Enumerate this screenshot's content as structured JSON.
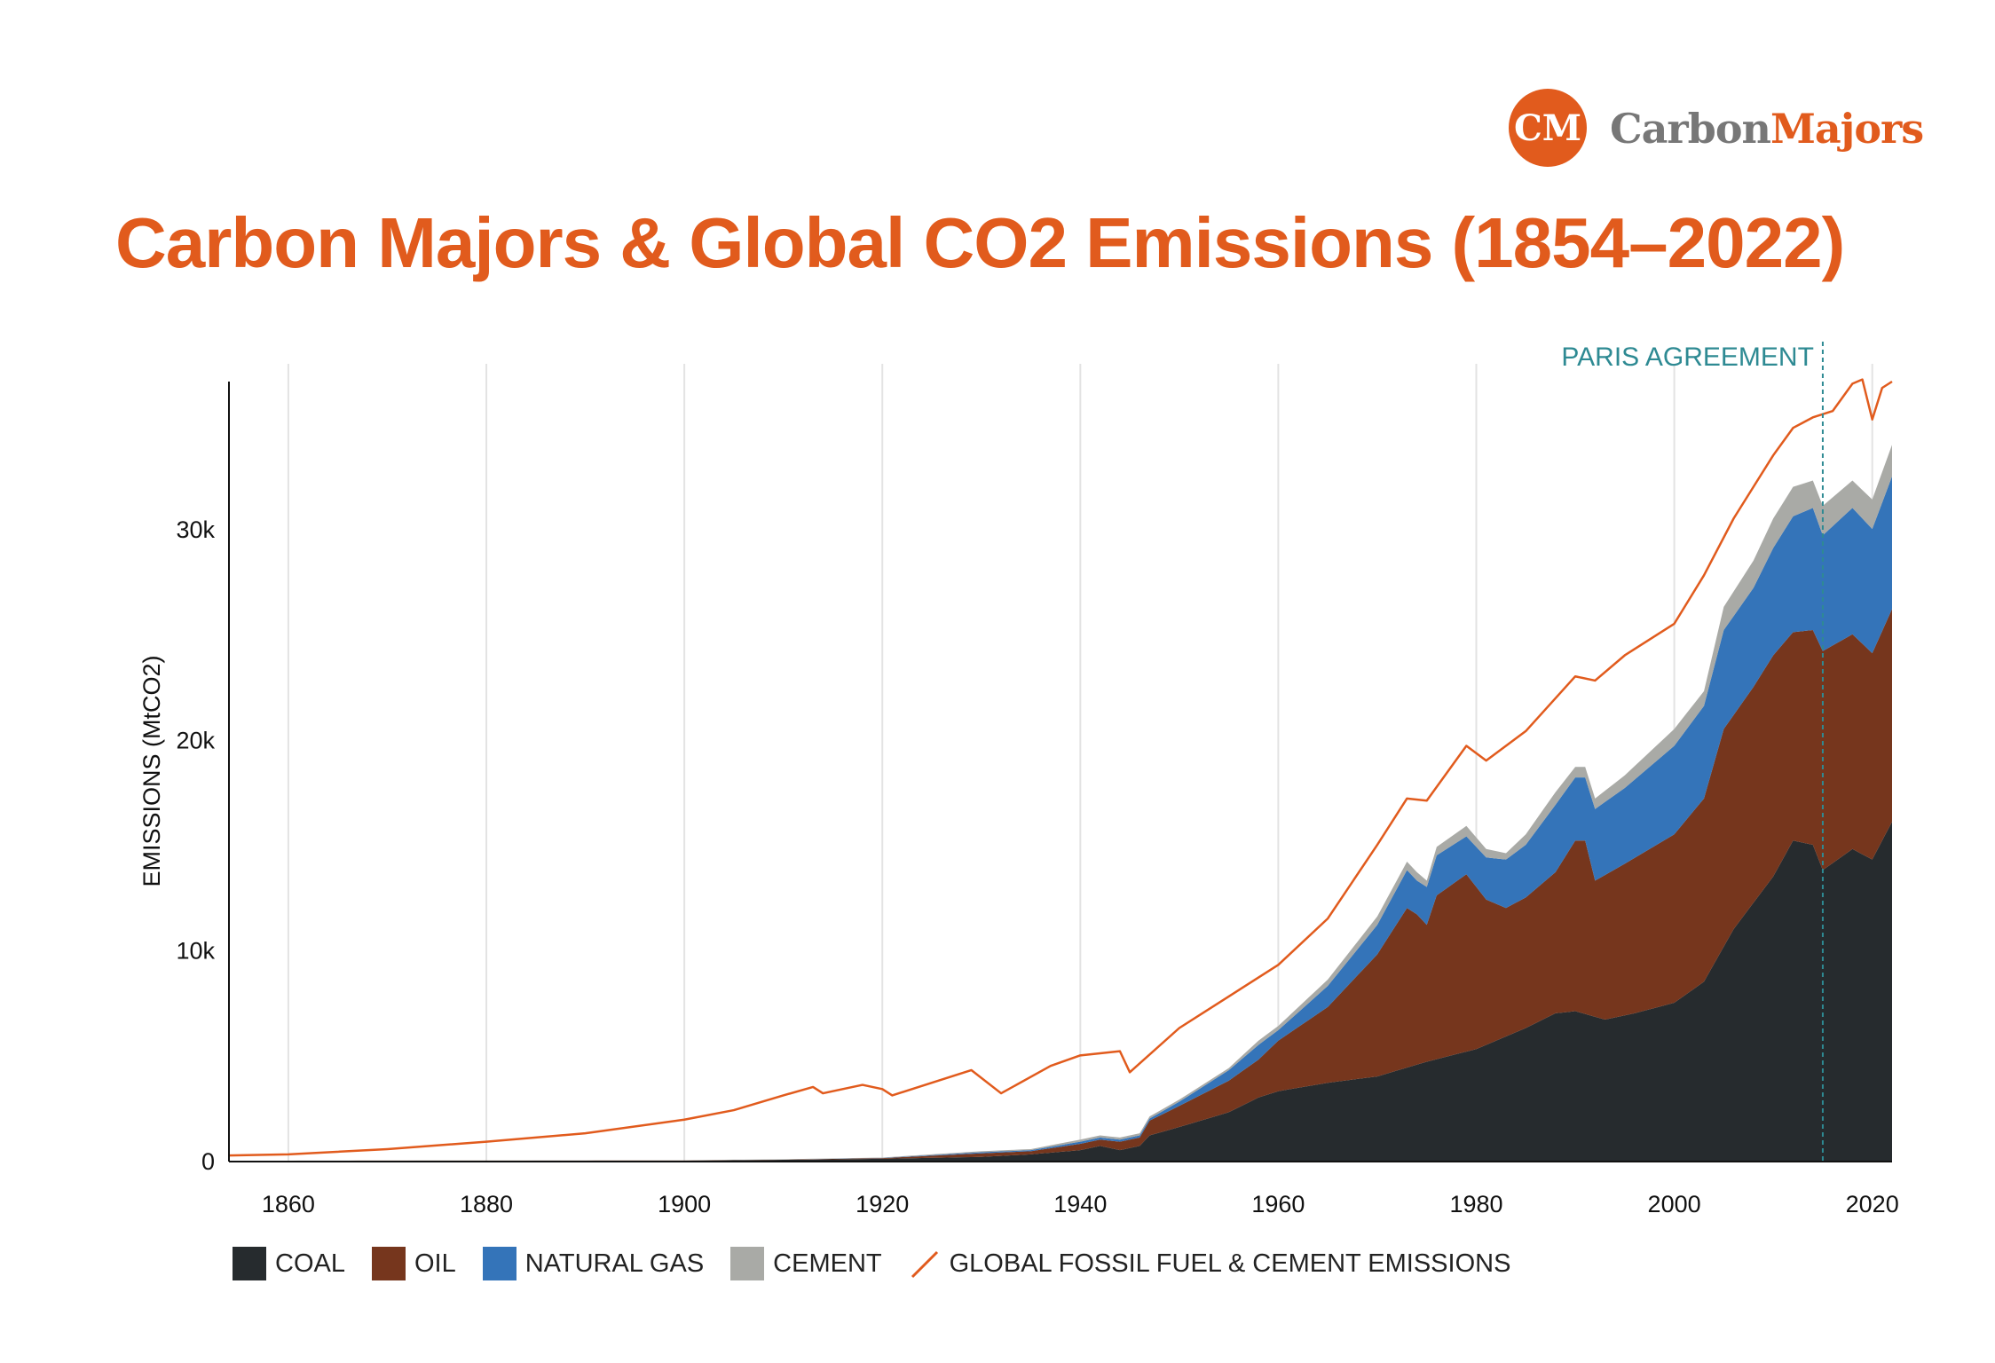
{
  "logo": {
    "initials": "CM",
    "text_a": "Carbon",
    "text_b": "Majors"
  },
  "title": "Carbon Majors & Global CO2 Emissions (1854–2022)",
  "colors": {
    "accent": "#e15b1d",
    "coal": "#262b2e",
    "oil": "#76361d",
    "natural_gas": "#3474b9",
    "cement": "#a9aaa6",
    "global_line": "#e15b1d",
    "paris": "#2e8a93",
    "grid": "#e3e3e3"
  },
  "legend": [
    {
      "key": "coal",
      "label": "COAL"
    },
    {
      "key": "oil",
      "label": "OIL"
    },
    {
      "key": "natural_gas",
      "label": "NATURAL GAS"
    },
    {
      "key": "cement",
      "label": "CEMENT"
    },
    {
      "key": "global",
      "label": "GLOBAL FOSSIL FUEL & CEMENT EMISSIONS"
    }
  ],
  "chart_data": {
    "type": "area",
    "title": "Carbon Majors & Global CO2 Emissions (1854–2022)",
    "xlabel": "",
    "ylabel": "EMISSIONS (MtCO2)",
    "xlim": [
      1854,
      2022
    ],
    "ylim": [
      0,
      37000
    ],
    "x_ticks": [
      1860,
      1880,
      1900,
      1920,
      1940,
      1960,
      1980,
      2000,
      2020
    ],
    "y_ticks": [
      0,
      10000,
      20000,
      30000
    ],
    "y_tick_labels": [
      "0",
      "10k",
      "20k",
      "30k"
    ],
    "grid": "vertical",
    "legend_position": "bottom",
    "stack_order": [
      "coal",
      "oil",
      "natural_gas",
      "cement"
    ],
    "series": [
      {
        "key": "coal",
        "name": "COAL",
        "points": [
          [
            1854,
            0
          ],
          [
            1900,
            0
          ],
          [
            1910,
            40
          ],
          [
            1920,
            90
          ],
          [
            1930,
            180
          ],
          [
            1935,
            300
          ],
          [
            1940,
            500
          ],
          [
            1942,
            700
          ],
          [
            1944,
            500
          ],
          [
            1946,
            700
          ],
          [
            1947,
            1200
          ],
          [
            1950,
            1600
          ],
          [
            1955,
            2300
          ],
          [
            1958,
            3000
          ],
          [
            1960,
            3300
          ],
          [
            1965,
            3700
          ],
          [
            1970,
            4000
          ],
          [
            1975,
            4700
          ],
          [
            1980,
            5300
          ],
          [
            1985,
            6300
          ],
          [
            1988,
            7000
          ],
          [
            1990,
            7100
          ],
          [
            1993,
            6700
          ],
          [
            1996,
            7000
          ],
          [
            2000,
            7500
          ],
          [
            2003,
            8500
          ],
          [
            2006,
            11000
          ],
          [
            2010,
            13500
          ],
          [
            2012,
            15200
          ],
          [
            2014,
            15000
          ],
          [
            2015,
            13800
          ],
          [
            2018,
            14800
          ],
          [
            2020,
            14300
          ],
          [
            2022,
            16100
          ]
        ]
      },
      {
        "key": "oil",
        "name": "OIL",
        "points": [
          [
            1854,
            0
          ],
          [
            1900,
            10
          ],
          [
            1910,
            50
          ],
          [
            1920,
            120
          ],
          [
            1930,
            350
          ],
          [
            1935,
            450
          ],
          [
            1940,
            800
          ],
          [
            1942,
            1000
          ],
          [
            1944,
            900
          ],
          [
            1946,
            1100
          ],
          [
            1947,
            1900
          ],
          [
            1950,
            2600
          ],
          [
            1955,
            3800
          ],
          [
            1958,
            4800
          ],
          [
            1960,
            5700
          ],
          [
            1965,
            7300
          ],
          [
            1970,
            9800
          ],
          [
            1973,
            12000
          ],
          [
            1974,
            11700
          ],
          [
            1975,
            11200
          ],
          [
            1976,
            12600
          ],
          [
            1979,
            13600
          ],
          [
            1981,
            12400
          ],
          [
            1983,
            12000
          ],
          [
            1985,
            12500
          ],
          [
            1988,
            13700
          ],
          [
            1990,
            15200
          ],
          [
            1991,
            15200
          ],
          [
            1992,
            13300
          ],
          [
            1995,
            14100
          ],
          [
            2000,
            15500
          ],
          [
            2003,
            17200
          ],
          [
            2005,
            20500
          ],
          [
            2008,
            22500
          ],
          [
            2010,
            24000
          ],
          [
            2012,
            25100
          ],
          [
            2014,
            25200
          ],
          [
            2015,
            24200
          ],
          [
            2018,
            25000
          ],
          [
            2020,
            24100
          ],
          [
            2022,
            26200
          ]
        ]
      },
      {
        "key": "natural_gas",
        "name": "NATURAL GAS",
        "points": [
          [
            1854,
            0
          ],
          [
            1900,
            10
          ],
          [
            1910,
            50
          ],
          [
            1920,
            130
          ],
          [
            1930,
            400
          ],
          [
            1935,
            500
          ],
          [
            1940,
            900
          ],
          [
            1942,
            1100
          ],
          [
            1944,
            1000
          ],
          [
            1946,
            1200
          ],
          [
            1947,
            2000
          ],
          [
            1950,
            2800
          ],
          [
            1955,
            4300
          ],
          [
            1958,
            5500
          ],
          [
            1960,
            6200
          ],
          [
            1965,
            8300
          ],
          [
            1970,
            11200
          ],
          [
            1973,
            13800
          ],
          [
            1974,
            13300
          ],
          [
            1975,
            13000
          ],
          [
            1976,
            14500
          ],
          [
            1979,
            15400
          ],
          [
            1981,
            14400
          ],
          [
            1983,
            14300
          ],
          [
            1985,
            15000
          ],
          [
            1988,
            16900
          ],
          [
            1990,
            18200
          ],
          [
            1991,
            18200
          ],
          [
            1992,
            16700
          ],
          [
            1995,
            17700
          ],
          [
            2000,
            19700
          ],
          [
            2003,
            21600
          ],
          [
            2005,
            25200
          ],
          [
            2008,
            27200
          ],
          [
            2010,
            29100
          ],
          [
            2012,
            30600
          ],
          [
            2014,
            31000
          ],
          [
            2015,
            29700
          ],
          [
            2018,
            31000
          ],
          [
            2020,
            30000
          ],
          [
            2022,
            32500
          ]
        ]
      },
      {
        "key": "cement",
        "name": "CEMENT",
        "points": [
          [
            1854,
            0
          ],
          [
            1900,
            20
          ],
          [
            1910,
            70
          ],
          [
            1920,
            150
          ],
          [
            1930,
            450
          ],
          [
            1935,
            550
          ],
          [
            1940,
            1000
          ],
          [
            1942,
            1200
          ],
          [
            1944,
            1100
          ],
          [
            1946,
            1300
          ],
          [
            1947,
            2100
          ],
          [
            1950,
            2900
          ],
          [
            1955,
            4400
          ],
          [
            1958,
            5700
          ],
          [
            1960,
            6400
          ],
          [
            1965,
            8600
          ],
          [
            1970,
            11600
          ],
          [
            1973,
            14200
          ],
          [
            1974,
            13700
          ],
          [
            1975,
            13300
          ],
          [
            1976,
            14900
          ],
          [
            1979,
            15900
          ],
          [
            1981,
            14800
          ],
          [
            1983,
            14600
          ],
          [
            1985,
            15500
          ],
          [
            1988,
            17500
          ],
          [
            1990,
            18700
          ],
          [
            1991,
            18700
          ],
          [
            1992,
            17200
          ],
          [
            1995,
            18300
          ],
          [
            2000,
            20500
          ],
          [
            2003,
            22300
          ],
          [
            2005,
            26300
          ],
          [
            2008,
            28500
          ],
          [
            2010,
            30500
          ],
          [
            2012,
            32000
          ],
          [
            2014,
            32300
          ],
          [
            2015,
            31100
          ],
          [
            2018,
            32300
          ],
          [
            2020,
            31400
          ],
          [
            2022,
            34000
          ]
        ]
      },
      {
        "key": "global",
        "name": "GLOBAL FOSSIL FUEL & CEMENT EMISSIONS",
        "points": [
          [
            1854,
            250
          ],
          [
            1860,
            300
          ],
          [
            1870,
            550
          ],
          [
            1880,
            900
          ],
          [
            1890,
            1300
          ],
          [
            1900,
            1950
          ],
          [
            1905,
            2400
          ],
          [
            1910,
            3100
          ],
          [
            1913,
            3500
          ],
          [
            1914,
            3200
          ],
          [
            1918,
            3600
          ],
          [
            1920,
            3400
          ],
          [
            1921,
            3100
          ],
          [
            1925,
            3700
          ],
          [
            1929,
            4300
          ],
          [
            1932,
            3200
          ],
          [
            1937,
            4500
          ],
          [
            1940,
            5000
          ],
          [
            1944,
            5200
          ],
          [
            1945,
            4200
          ],
          [
            1950,
            6300
          ],
          [
            1955,
            7800
          ],
          [
            1960,
            9300
          ],
          [
            1965,
            11500
          ],
          [
            1970,
            15000
          ],
          [
            1973,
            17200
          ],
          [
            1975,
            17100
          ],
          [
            1979,
            19700
          ],
          [
            1981,
            19000
          ],
          [
            1985,
            20400
          ],
          [
            1990,
            23000
          ],
          [
            1992,
            22800
          ],
          [
            1995,
            24000
          ],
          [
            2000,
            25500
          ],
          [
            2003,
            27800
          ],
          [
            2006,
            30500
          ],
          [
            2008,
            32000
          ],
          [
            2010,
            33500
          ],
          [
            2012,
            34800
          ],
          [
            2014,
            35300
          ],
          [
            2016,
            35600
          ],
          [
            2018,
            36900
          ],
          [
            2019,
            37100
          ],
          [
            2020,
            35200
          ],
          [
            2021,
            36700
          ],
          [
            2022,
            37000
          ]
        ]
      }
    ],
    "annotations": [
      {
        "type": "vline",
        "x": 2015,
        "label": "PARIS AGREEMENT"
      }
    ]
  }
}
